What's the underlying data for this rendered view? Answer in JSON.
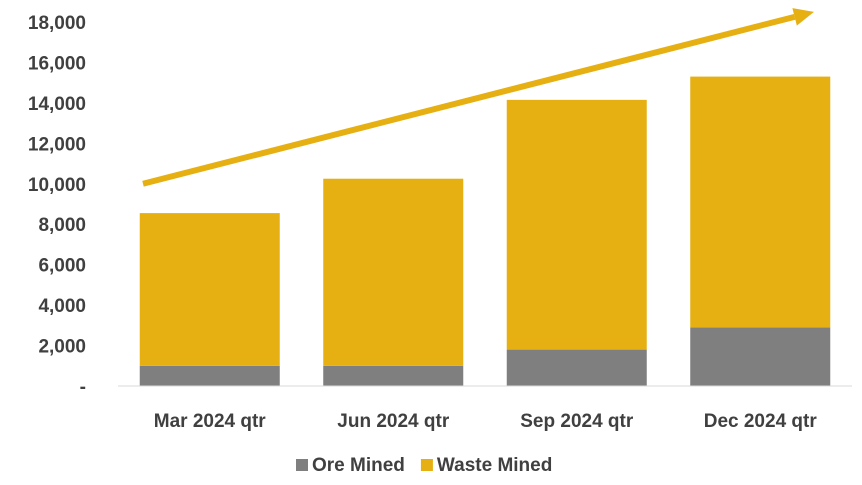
{
  "chart_data": {
    "type": "bar",
    "stacked": true,
    "categories": [
      "Mar 2024 qtr",
      "Jun 2024 qtr",
      "Sep 2024 qtr",
      "Dec 2024 qtr"
    ],
    "series": [
      {
        "name": "Ore Mined",
        "values": [
          1000,
          1000,
          1800,
          2900
        ],
        "color": "#7f7f7f"
      },
      {
        "name": "Waste Mined",
        "values": [
          7550,
          9250,
          12350,
          12400
        ],
        "color": "#e6b012"
      }
    ],
    "ylim": [
      0,
      18000
    ],
    "yticks": [
      {
        "value": 0,
        "label": "-"
      },
      {
        "value": 2000,
        "label": "2,000"
      },
      {
        "value": 4000,
        "label": "4,000"
      },
      {
        "value": 6000,
        "label": "6,000"
      },
      {
        "value": 8000,
        "label": "8,000"
      },
      {
        "value": 10000,
        "label": "10,000"
      },
      {
        "value": 12000,
        "label": "12,000"
      },
      {
        "value": 14000,
        "label": "14,000"
      },
      {
        "value": 16000,
        "label": "16,000"
      },
      {
        "value": 18000,
        "label": "18,000"
      }
    ],
    "trend_arrow": {
      "from_y": 10000,
      "to_y": 18500,
      "color": "#e6b012"
    },
    "grid": false,
    "legend": "bottom",
    "title": "",
    "xlabel": "",
    "ylabel": ""
  }
}
